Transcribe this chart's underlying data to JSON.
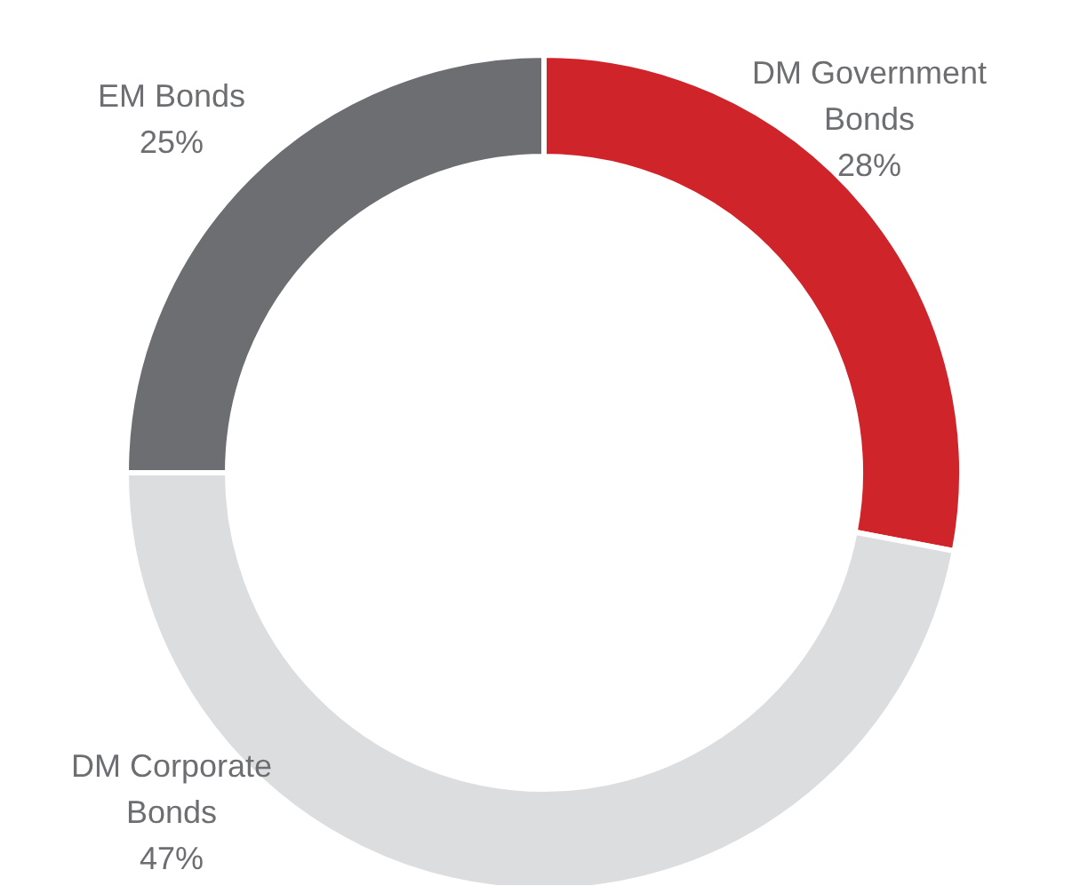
{
  "chart_data": {
    "type": "donut",
    "categories": [
      "DM Government Bonds",
      "DM Corporate Bonds",
      "EM Bonds"
    ],
    "values": [
      28,
      47,
      25
    ],
    "colors": [
      "#d0242b",
      "#dcdddf",
      "#6d6e71"
    ],
    "value_labels": [
      "28%",
      "47%",
      "25%"
    ],
    "legend": false
  }
}
